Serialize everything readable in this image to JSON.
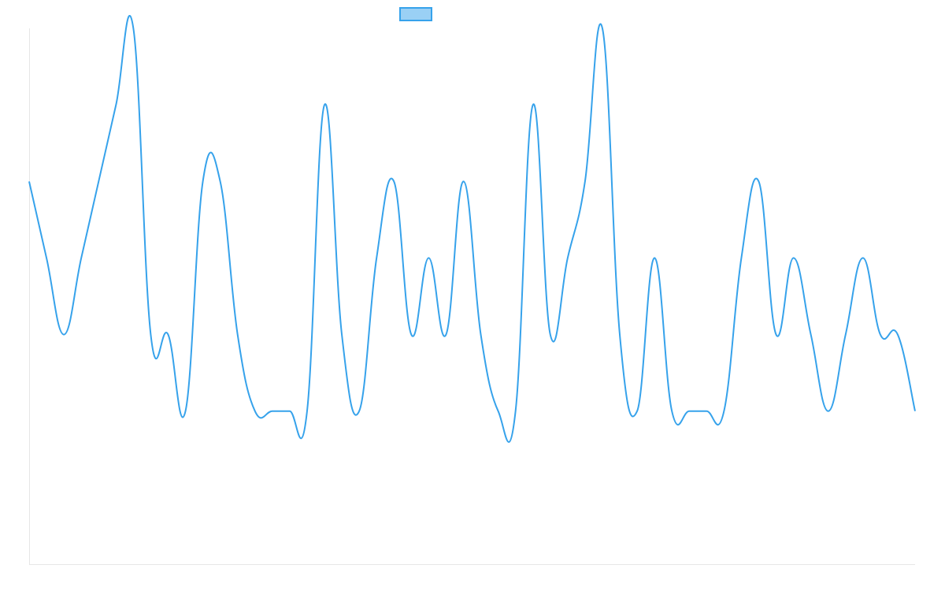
{
  "chart_data": {
    "type": "line",
    "categories": [
      null,
      null,
      null,
      null,
      null,
      null,
      null,
      null,
      null,
      null,
      null,
      null,
      null,
      null,
      null,
      null,
      null,
      null,
      null,
      null,
      null,
      null,
      null,
      null,
      null,
      null,
      null,
      null,
      null,
      null,
      null,
      null,
      null,
      null,
      null,
      null,
      null,
      null,
      null,
      null,
      null,
      null,
      null,
      null,
      null,
      null,
      null,
      null,
      null,
      null,
      null,
      null
    ],
    "series": [
      {
        "color": "#36a2eb",
        "values": [
          5,
          4,
          3,
          4,
          5,
          6,
          7,
          3,
          3,
          2,
          5,
          5,
          3,
          2,
          2,
          2,
          2,
          6,
          3,
          2,
          4,
          5,
          3,
          4,
          3,
          5,
          3,
          2,
          2,
          6,
          3,
          4,
          5,
          7,
          3,
          2,
          4,
          2,
          2,
          2,
          2,
          4,
          5,
          3,
          4,
          3,
          2,
          3,
          4,
          3,
          3,
          2
        ]
      }
    ],
    "ylim": [
      0,
      7
    ]
  }
}
